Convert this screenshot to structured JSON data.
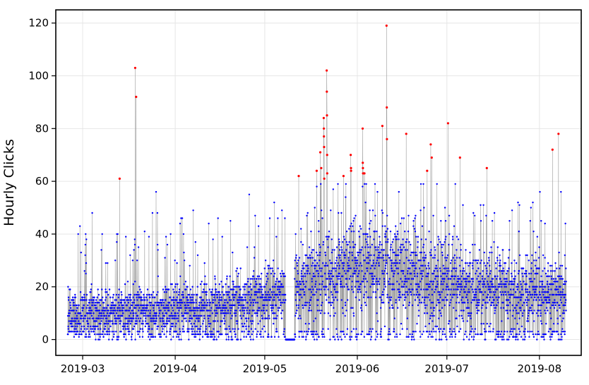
{
  "chart_data": {
    "type": "scatter",
    "title": "",
    "xlabel": "",
    "ylabel": "Hourly Clicks",
    "x_range": [
      "2019-02-20",
      "2019-08-15"
    ],
    "ylim": [
      -6,
      125
    ],
    "grid": true,
    "x_ticks": [
      "2019-03",
      "2019-04",
      "2019-05",
      "2019-06",
      "2019-07",
      "2019-08"
    ],
    "y_ticks": [
      0,
      20,
      40,
      60,
      80,
      100,
      120
    ],
    "data_start": "2019-02-24",
    "data_end": "2019-08-09",
    "normal_point_color": "#0000ff",
    "outlier_point_color": "#ff0000",
    "line_color": "#9e9e9e",
    "outliers": [
      {
        "x": "2019-03-13",
        "y": 61
      },
      {
        "x": "2019-03-18",
        "y": 103
      },
      {
        "x": "2019-03-18",
        "y": 92
      },
      {
        "x": "2019-05-12",
        "y": 62
      },
      {
        "x": "2019-05-18",
        "y": 64
      },
      {
        "x": "2019-05-19",
        "y": 71
      },
      {
        "x": "2019-05-19",
        "y": 65
      },
      {
        "x": "2019-05-20",
        "y": 84
      },
      {
        "x": "2019-05-20",
        "y": 80
      },
      {
        "x": "2019-05-20",
        "y": 77
      },
      {
        "x": "2019-05-20",
        "y": 73
      },
      {
        "x": "2019-05-20",
        "y": 61
      },
      {
        "x": "2019-05-21",
        "y": 102
      },
      {
        "x": "2019-05-21",
        "y": 94
      },
      {
        "x": "2019-05-21",
        "y": 85
      },
      {
        "x": "2019-05-21",
        "y": 70
      },
      {
        "x": "2019-05-21",
        "y": 63
      },
      {
        "x": "2019-05-27",
        "y": 62
      },
      {
        "x": "2019-05-29",
        "y": 70
      },
      {
        "x": "2019-05-29",
        "y": 65
      },
      {
        "x": "2019-05-29",
        "y": 64
      },
      {
        "x": "2019-06-02",
        "y": 80
      },
      {
        "x": "2019-06-02",
        "y": 67
      },
      {
        "x": "2019-06-02",
        "y": 65
      },
      {
        "x": "2019-06-02",
        "y": 63
      },
      {
        "x": "2019-06-03",
        "y": 63
      },
      {
        "x": "2019-06-09",
        "y": 81
      },
      {
        "x": "2019-06-10",
        "y": 119
      },
      {
        "x": "2019-06-10",
        "y": 88
      },
      {
        "x": "2019-06-10",
        "y": 76
      },
      {
        "x": "2019-06-17",
        "y": 78
      },
      {
        "x": "2019-06-24",
        "y": 64
      },
      {
        "x": "2019-06-25",
        "y": 74
      },
      {
        "x": "2019-06-25",
        "y": 69
      },
      {
        "x": "2019-07-01",
        "y": 82
      },
      {
        "x": "2019-07-05",
        "y": 69
      },
      {
        "x": "2019-07-14",
        "y": 65
      },
      {
        "x": "2019-08-05",
        "y": 72
      },
      {
        "x": "2019-08-07",
        "y": 78
      }
    ]
  }
}
